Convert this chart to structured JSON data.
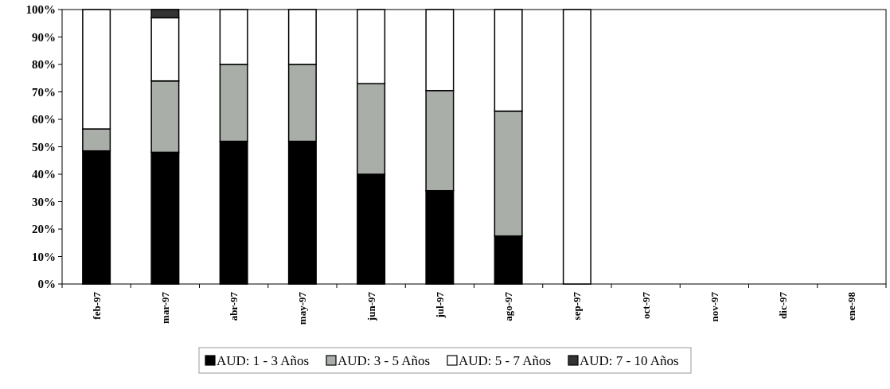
{
  "chart_data": {
    "type": "bar",
    "stacked": true,
    "categories": [
      "feb-97",
      "mar-97",
      "abr-97",
      "may-97",
      "jun-97",
      "jul-97",
      "ago-97",
      "sep-97",
      "oct-97",
      "nov-97",
      "dic-97",
      "ene-98"
    ],
    "series": [
      {
        "name": "AUD: 1 - 3 Años",
        "color": "#000000",
        "values": [
          48.5,
          48,
          52,
          52,
          40,
          34,
          17.5,
          0,
          null,
          null,
          null,
          null
        ]
      },
      {
        "name": "AUD: 3 - 5 Años",
        "color": "#a9aea9",
        "values": [
          8,
          26,
          28,
          28,
          33,
          36.5,
          45.5,
          0,
          null,
          null,
          null,
          null
        ]
      },
      {
        "name": "AUD: 5 - 7 Años",
        "color": "#ffffff",
        "values": [
          43.5,
          23,
          20,
          20,
          27,
          29.5,
          37,
          100,
          null,
          null,
          null,
          null
        ]
      },
      {
        "name": "AUD: 7 - 10 Años",
        "color": "#333333",
        "values": [
          0,
          3,
          0,
          0,
          0,
          0,
          0,
          0,
          null,
          null,
          null,
          null
        ]
      }
    ],
    "ylim": [
      0,
      100
    ],
    "yticks": [
      {
        "value": 0,
        "label": "0%"
      },
      {
        "value": 10,
        "label": "10%"
      },
      {
        "value": 20,
        "label": "20%"
      },
      {
        "value": 30,
        "label": "30%"
      },
      {
        "value": 40,
        "label": "40%"
      },
      {
        "value": 50,
        "label": "50%"
      },
      {
        "value": 60,
        "label": "60%"
      },
      {
        "value": 70,
        "label": "70%"
      },
      {
        "value": 80,
        "label": "80%"
      },
      {
        "value": 90,
        "label": "90%"
      },
      {
        "value": 100,
        "label": "100%"
      }
    ],
    "legend": "bottom",
    "grid": false
  }
}
